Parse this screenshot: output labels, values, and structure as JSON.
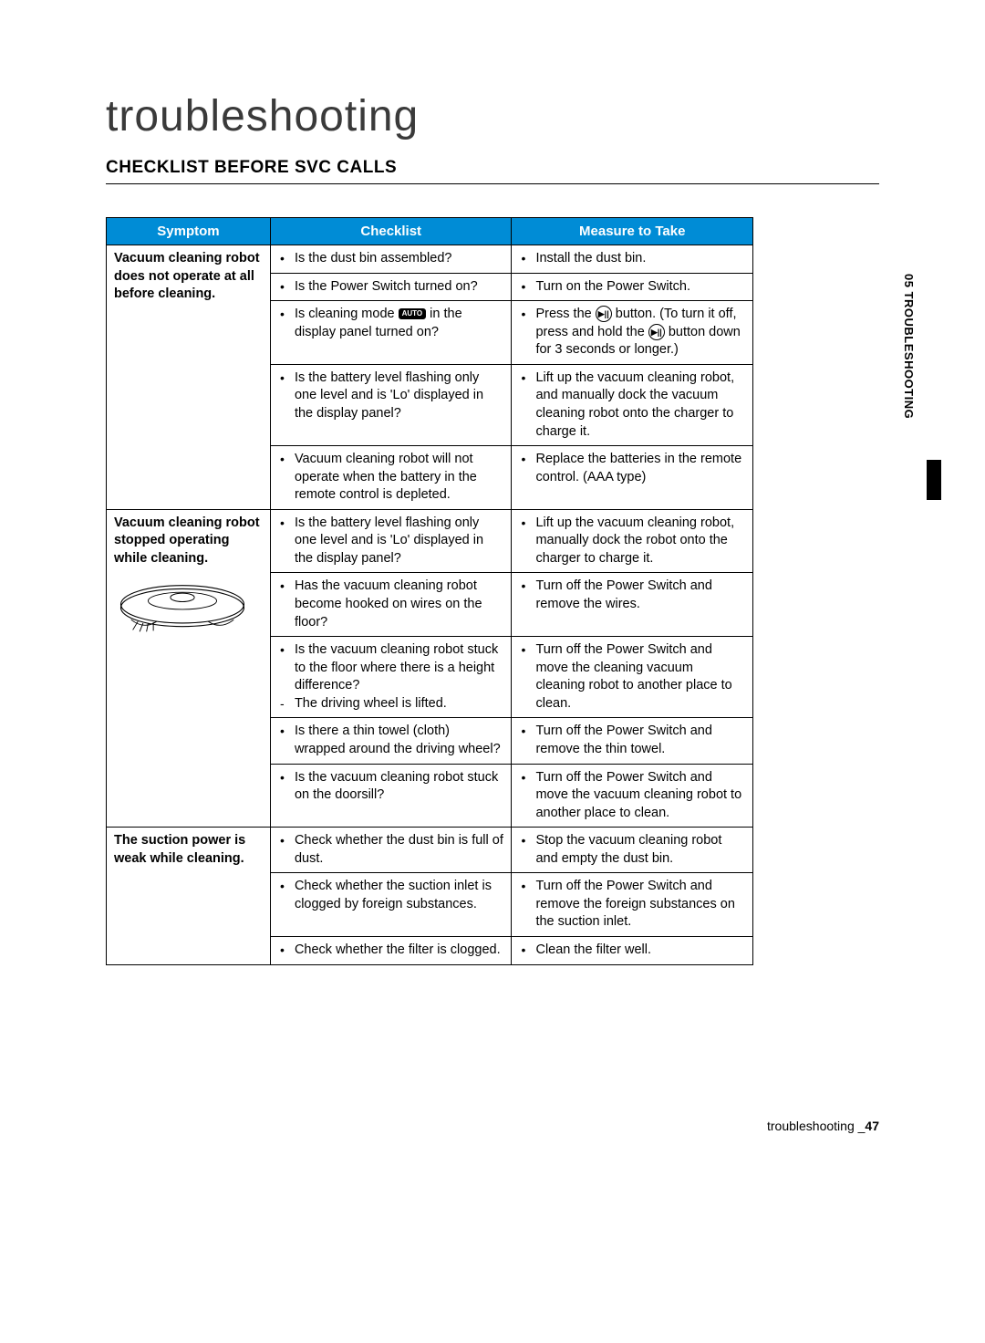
{
  "title": "troubleshooting",
  "subtitle": "CHECKLIST BEFORE SVC CALLS",
  "side_tab": "05  TROUBLESHOOTING",
  "footer": {
    "label": "troubleshooting _",
    "page": "47"
  },
  "headers": {
    "symptom": "Symptom",
    "checklist": "Checklist",
    "measure": "Measure to Take"
  },
  "icons": {
    "auto_badge": "AUTO",
    "play_pause": "▶||"
  },
  "groups": [
    {
      "symptom": "Vacuum cleaning robot does not operate at all before cleaning.",
      "rows": [
        {
          "chk": [
            "Is the dust bin assembled?"
          ],
          "mea": [
            "Install the dust bin."
          ]
        },
        {
          "chk": [
            "Is the Power Switch turned on?"
          ],
          "mea": [
            "Turn on the Power Switch."
          ]
        },
        {
          "chk_html": "mode_display",
          "mea_html": "press_button"
        },
        {
          "chk": [
            "Is the battery level flashing only one level and is 'Lo' displayed in the display panel?"
          ],
          "mea": [
            "Lift up the vacuum cleaning robot, and manually dock the vacuum cleaning robot onto the charger to charge it."
          ]
        },
        {
          "chk": [
            "Vacuum cleaning robot will not operate when the battery in the remote control is depleted."
          ],
          "mea": [
            "Replace the batteries in the remote control. (AAA type)"
          ]
        }
      ]
    },
    {
      "symptom": "Vacuum cleaning robot stopped operating while cleaning.",
      "has_image": true,
      "rows": [
        {
          "chk": [
            "Is the battery level flashing only one level and is 'Lo' displayed in the display panel?"
          ],
          "mea": [
            "Lift up the vacuum cleaning robot, manually dock the robot onto the charger to charge it."
          ]
        },
        {
          "chk": [
            "Has the vacuum cleaning robot become hooked on wires on the floor?"
          ],
          "mea": [
            "Turn off the Power Switch and remove the wires."
          ]
        },
        {
          "chk": [
            "Is the vacuum cleaning robot stuck to the floor where there is a height difference?"
          ],
          "chk_dash": [
            "The driving wheel is lifted."
          ],
          "mea": [
            "Turn off the Power Switch and move the cleaning vacuum cleaning robot to another place to clean."
          ]
        },
        {
          "chk": [
            "Is there a thin towel (cloth) wrapped around the driving wheel?"
          ],
          "mea": [
            "Turn off the Power Switch and remove the thin towel."
          ]
        },
        {
          "chk": [
            "Is the vacuum cleaning robot stuck on the doorsill?"
          ],
          "mea": [
            "Turn off the Power Switch and move the vacuum cleaning robot to another place to clean."
          ]
        }
      ]
    },
    {
      "symptom": "The suction power is weak while cleaning.",
      "rows": [
        {
          "chk": [
            "Check whether the dust bin is full of dust."
          ],
          "mea": [
            "Stop the vacuum cleaning robot and empty the dust bin."
          ]
        },
        {
          "chk": [
            "Check whether the suction inlet is clogged by foreign substances."
          ],
          "mea": [
            "Turn off the Power Switch and remove the foreign substances on the suction inlet."
          ]
        },
        {
          "chk": [
            "Check whether the filter is clogged."
          ],
          "mea": [
            "Clean the filter well."
          ]
        }
      ]
    }
  ],
  "special_rows": {
    "mode_display": "Is cleaning mode {AUTO} in the display panel turned on?",
    "press_button": "Press the {BTN} button. (To turn it off, press and hold the {BTN} button down for 3 seconds or longer.)"
  },
  "style": {
    "header_bg": "#008cd6",
    "header_fg": "#ffffff",
    "border": "#000000",
    "title_color": "#3a3a3a",
    "font_body": 14.5,
    "font_title": 48
  }
}
